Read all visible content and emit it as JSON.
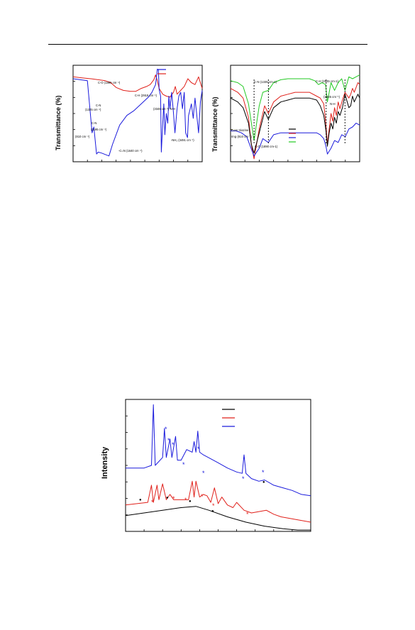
{
  "chart_data": [
    {
      "type": "line",
      "title": "",
      "ylabel": "Transmittance (%)",
      "xlabel": "",
      "x_direction": "reversed",
      "xlim": [
        4000,
        400
      ],
      "ylim": [
        0,
        100
      ],
      "legend_position": "top-right",
      "legend_colors": [
        "#1a1adc",
        "#e0201a"
      ],
      "series": [
        {
          "color": "#e0201a",
          "x": [
            4000,
            3750,
            3500,
            3300,
            3100,
            2950,
            2800,
            2600,
            2400,
            2250,
            2100,
            1950,
            1850,
            1750,
            1700,
            1650,
            1600,
            1500,
            1400,
            1300,
            1200,
            1150,
            1100,
            1000,
            900,
            800,
            700,
            600,
            500,
            400
          ],
          "y": [
            88,
            87,
            86,
            85,
            84,
            82,
            77,
            74,
            73,
            73,
            76,
            78,
            80,
            85,
            90,
            84,
            76,
            70,
            68,
            67,
            72,
            78,
            70,
            74,
            78,
            86,
            82,
            80,
            88,
            76
          ]
        },
        {
          "color": "#1a1adc",
          "x": [
            4000,
            3800,
            3600,
            3470,
            3420,
            3345,
            3300,
            3200,
            3000,
            2900,
            2700,
            2500,
            2300,
            2100,
            1900,
            1800,
            1700,
            1650,
            1620,
            1600,
            1560,
            1540,
            1500,
            1470,
            1440,
            1400,
            1360,
            1330,
            1300,
            1250,
            1200,
            1160,
            1100,
            1050,
            1000,
            950,
            900,
            860,
            810,
            780,
            700,
            650,
            600,
            550,
            500,
            450,
            400
          ],
          "y": [
            86,
            85,
            84,
            30,
            36,
            8,
            10,
            9,
            6,
            18,
            38,
            48,
            53,
            60,
            67,
            72,
            80,
            96,
            95,
            75,
            68,
            10,
            40,
            60,
            28,
            50,
            40,
            68,
            55,
            72,
            50,
            30,
            55,
            68,
            72,
            55,
            72,
            30,
            25,
            48,
            60,
            45,
            66,
            48,
            30,
            62,
            74
          ]
        }
      ],
      "annotations": [
        "C-O (1895 cm⁻¹)",
        "C-H (2918 cm⁻¹)",
        "C-N",
        "(1325 cm⁻¹)",
        "C-N",
        "(1195 cm⁻¹)",
        "(810 cm⁻¹)",
        "(3345 cm⁻¹) N-H",
        "-NH₂ (3491 cm⁻¹)",
        "-C=N (1640 cm⁻¹)"
      ]
    },
    {
      "type": "line",
      "title": "",
      "ylabel": "Transmittance (%)",
      "xlabel": "",
      "x_direction": "reversed",
      "xlim": [
        4000,
        400
      ],
      "ylim": [
        0,
        100
      ],
      "legend_position": "bottom-right",
      "legend_colors": [
        "#000000",
        "#e0201a",
        "#1a1adc",
        "#22c922"
      ],
      "series": [
        {
          "color": "#22c922",
          "x": [
            400,
            500,
            600,
            700,
            810,
            900,
            1000,
            1100,
            1200,
            1300,
            1350,
            1450,
            1550,
            1650,
            1800,
            2000,
            2200,
            2400,
            2600,
            2800,
            2945,
            3100,
            3200,
            3345,
            3500,
            3650,
            3800,
            4000
          ],
          "y": [
            90,
            88,
            86,
            88,
            74,
            86,
            82,
            74,
            82,
            62,
            80,
            82,
            80,
            84,
            86,
            86,
            86,
            86,
            85,
            82,
            74,
            72,
            58,
            22,
            60,
            78,
            82,
            84
          ]
        },
        {
          "color": "#e0201a",
          "x": [
            400,
            450,
            550,
            600,
            650,
            700,
            810,
            880,
            950,
            1000,
            1050,
            1100,
            1150,
            1200,
            1250,
            1300,
            1340,
            1400,
            1500,
            1600,
            1800,
            2000,
            2200,
            2400,
            2600,
            2800,
            2945,
            3050,
            3200,
            3345,
            3420,
            3500,
            3650,
            3800,
            4000
          ],
          "y": [
            80,
            82,
            72,
            76,
            70,
            66,
            72,
            64,
            55,
            62,
            48,
            56,
            42,
            50,
            34,
            18,
            38,
            60,
            66,
            68,
            72,
            72,
            72,
            70,
            68,
            62,
            50,
            58,
            34,
            3,
            18,
            46,
            66,
            72,
            76
          ]
        },
        {
          "color": "#000000",
          "x": [
            400,
            450,
            550,
            600,
            650,
            700,
            810,
            880,
            950,
            1000,
            1050,
            1100,
            1150,
            1200,
            1250,
            1300,
            1340,
            1400,
            1500,
            1600,
            1800,
            2000,
            2200,
            2400,
            2600,
            2800,
            2945,
            3050,
            3200,
            3345,
            3420,
            3500,
            3650,
            3800,
            4000
          ],
          "y": [
            66,
            70,
            62,
            68,
            58,
            56,
            70,
            56,
            48,
            52,
            40,
            46,
            34,
            40,
            30,
            16,
            32,
            48,
            58,
            64,
            66,
            66,
            66,
            64,
            62,
            56,
            44,
            52,
            30,
            9,
            18,
            40,
            56,
            62,
            66
          ]
        },
        {
          "color": "#1a1adc",
          "x": [
            400,
            500,
            600,
            700,
            800,
            900,
            1000,
            1100,
            1200,
            1300,
            1340,
            1400,
            1500,
            1600,
            1800,
            2000,
            2200,
            2400,
            2600,
            2800,
            2945,
            3100,
            3200,
            3345,
            3450,
            3550,
            3700,
            3850,
            4000
          ],
          "y": [
            38,
            40,
            36,
            34,
            26,
            28,
            20,
            22,
            14,
            8,
            16,
            24,
            28,
            30,
            30,
            30,
            30,
            30,
            30,
            28,
            20,
            24,
            14,
            6,
            16,
            26,
            30,
            32,
            32
          ]
        }
      ],
      "annotations": [
        "C-N (1335 cm-1)",
        "C-H (2945 cm-1)",
        "(3345 cm⁻¹)",
        "N-H",
        "Core triazine",
        "ring (810 cm⁻¹)",
        "C-O (1890 cm-1)"
      ]
    },
    {
      "type": "line",
      "title": "",
      "ylabel": "Intensity",
      "xlabel": "",
      "xlim": [
        0,
        100
      ],
      "ylim": [
        0,
        100
      ],
      "legend_position": "top-right",
      "legend_colors": [
        "#000000",
        "#e0201a",
        "#1a1adc"
      ],
      "series": [
        {
          "color": "#000000",
          "x": [
            0,
            10,
            20,
            30,
            38,
            45,
            55,
            65,
            75,
            85,
            93,
            100
          ],
          "y": [
            12,
            14,
            16,
            18,
            19,
            16,
            11,
            7,
            4,
            2,
            1,
            1
          ]
        },
        {
          "color": "#e0201a",
          "x": [
            0,
            12,
            14,
            15,
            17,
            18,
            20,
            22,
            24,
            26,
            30,
            34,
            36,
            37,
            38,
            40,
            42,
            44,
            46,
            48,
            50,
            52,
            55,
            58,
            60,
            64,
            68,
            72,
            76,
            80,
            84,
            88,
            92,
            96,
            100
          ],
          "y": [
            20,
            22,
            35,
            22,
            35,
            24,
            36,
            24,
            28,
            24,
            24,
            24,
            38,
            26,
            38,
            26,
            28,
            27,
            22,
            33,
            21,
            26,
            20,
            18,
            22,
            16,
            14,
            15,
            16,
            13,
            11,
            10,
            9,
            8,
            7
          ]
        },
        {
          "color": "#1a1adc",
          "x": [
            0,
            10,
            14,
            15,
            16,
            20,
            21,
            22,
            24,
            25,
            27,
            28,
            30,
            33,
            36,
            37,
            38,
            39,
            40,
            42,
            46,
            50,
            55,
            60,
            63,
            64,
            65,
            68,
            72,
            75,
            80,
            85,
            90,
            95,
            100
          ],
          "y": [
            48,
            48,
            50,
            96,
            50,
            56,
            78,
            56,
            70,
            56,
            72,
            54,
            54,
            62,
            60,
            68,
            60,
            76,
            60,
            58,
            55,
            52,
            48,
            45,
            44,
            58,
            44,
            40,
            38,
            39,
            35,
            33,
            31,
            28,
            27
          ]
        }
      ],
      "markers": {
        "star": "*",
        "dot": "●"
      }
    }
  ]
}
